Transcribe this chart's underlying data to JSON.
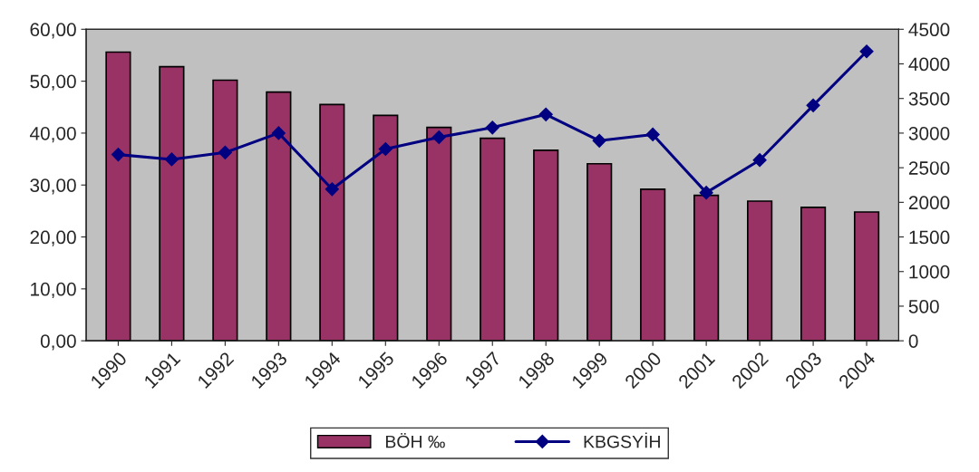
{
  "chart_data": {
    "type": "bar",
    "categories": [
      "1990",
      "1991",
      "1992",
      "1993",
      "1994",
      "1995",
      "1996",
      "1997",
      "1998",
      "1999",
      "2000",
      "2001",
      "2002",
      "2003",
      "2004"
    ],
    "series": [
      {
        "name": "BÖH ‰",
        "color": "#993366",
        "values": [
          55.6,
          52.8,
          50.2,
          47.9,
          45.5,
          43.4,
          41.1,
          39.0,
          36.7,
          34.1,
          29.2,
          28.0,
          26.9,
          25.7,
          24.8
        ]
      },
      {
        "name": "KBGSYİH",
        "type": "line",
        "axis": "y2",
        "color": "#000080",
        "marker": "diamond",
        "values": [
          2690,
          2620,
          2720,
          3000,
          2190,
          2770,
          2940,
          3080,
          3270,
          2890,
          2980,
          2140,
          2610,
          3400,
          4180
        ]
      }
    ],
    "ylim": [
      0,
      60
    ],
    "yticks": [
      {
        "value": 0,
        "label": "0,00"
      },
      {
        "value": 10,
        "label": "10,00"
      },
      {
        "value": 20,
        "label": "20,00"
      },
      {
        "value": 30,
        "label": "30,00"
      },
      {
        "value": 40,
        "label": "40,00"
      },
      {
        "value": 50,
        "label": "50,00"
      },
      {
        "value": 60,
        "label": "60,00"
      }
    ],
    "y2lim": [
      0,
      4500
    ],
    "y2ticks": [
      0,
      500,
      1000,
      1500,
      2000,
      2500,
      3000,
      3500,
      4000,
      4500
    ],
    "legend": "bottom",
    "grid": false
  }
}
